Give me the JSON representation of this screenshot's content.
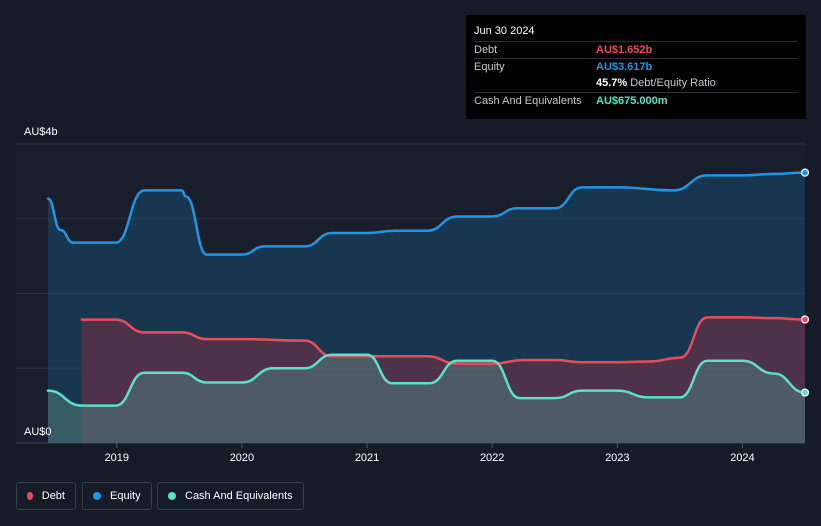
{
  "chart_data": {
    "type": "area",
    "ylabel_top": "AU$4b",
    "ylabel_bottom": "AU$0",
    "ylim": [
      0,
      4
    ],
    "x_ticks": [
      "2019",
      "2020",
      "2021",
      "2022",
      "2023",
      "2024"
    ],
    "x_tick_values": [
      2019,
      2020,
      2021,
      2022,
      2023,
      2024
    ],
    "xlim": [
      2018.45,
      2024.5
    ],
    "grid": true,
    "series": [
      {
        "name": "Equity",
        "color": "#2394df",
        "x": [
          2018.45,
          2018.55,
          2018.65,
          2018.99,
          2019.22,
          2019.3,
          2019.52,
          2019.55,
          2019.72,
          2019.74,
          2020.0,
          2020.18,
          2020.5,
          2020.72,
          2021.0,
          2021.23,
          2021.48,
          2021.72,
          2022.0,
          2022.2,
          2022.5,
          2022.72,
          2023.0,
          2023.45,
          2023.72,
          2024.0,
          2024.25,
          2024.5
        ],
        "values": [
          3.27,
          2.85,
          2.68,
          2.68,
          3.38,
          3.38,
          3.38,
          3.3,
          2.52,
          2.52,
          2.52,
          2.63,
          2.63,
          2.81,
          2.81,
          2.84,
          2.84,
          3.03,
          3.03,
          3.14,
          3.14,
          3.42,
          3.42,
          3.38,
          3.58,
          3.58,
          3.6,
          3.617
        ]
      },
      {
        "name": "Debt",
        "color": "#e64e5a",
        "x": [
          2018.72,
          2018.99,
          2019.22,
          2019.52,
          2019.72,
          2020.0,
          2020.5,
          2020.72,
          2021.0,
          2021.48,
          2021.72,
          2022.0,
          2022.25,
          2022.5,
          2022.72,
          2023.0,
          2023.25,
          2023.5,
          2023.72,
          2024.0,
          2024.25,
          2024.5
        ],
        "values": [
          1.65,
          1.65,
          1.48,
          1.48,
          1.39,
          1.39,
          1.37,
          1.16,
          1.16,
          1.16,
          1.06,
          1.06,
          1.11,
          1.11,
          1.08,
          1.08,
          1.09,
          1.14,
          1.68,
          1.68,
          1.67,
          1.652
        ]
      },
      {
        "name": "Cash And Equivalents",
        "color": "#5ce0c8",
        "x": [
          2018.45,
          2018.72,
          2018.99,
          2019.22,
          2019.52,
          2019.72,
          2020.0,
          2020.25,
          2020.5,
          2020.72,
          2021.0,
          2021.2,
          2021.5,
          2021.72,
          2022.0,
          2022.22,
          2022.5,
          2022.72,
          2023.0,
          2023.25,
          2023.5,
          2023.72,
          2024.0,
          2024.25,
          2024.5
        ],
        "values": [
          0.7,
          0.5,
          0.5,
          0.94,
          0.94,
          0.81,
          0.81,
          1.0,
          1.0,
          1.18,
          1.18,
          0.8,
          0.8,
          1.1,
          1.1,
          0.6,
          0.6,
          0.7,
          0.7,
          0.61,
          0.61,
          1.1,
          1.1,
          0.93,
          0.675
        ]
      }
    ]
  },
  "tooltip": {
    "date": "Jun 30 2024",
    "debt_label": "Debt",
    "debt_value": "AU$1.652b",
    "equity_label": "Equity",
    "equity_value": "AU$3.617b",
    "ratio_value": "45.7%",
    "ratio_label": "Debt/Equity Ratio",
    "cash_label": "Cash And Equivalents",
    "cash_value": "AU$675.000m"
  },
  "legend": {
    "debt": "Debt",
    "equity": "Equity",
    "cash": "Cash And Equivalents"
  },
  "colors": {
    "debt": "#e64e5a",
    "equity": "#2394df",
    "cash": "#5ce0c8",
    "background": "#151b27"
  }
}
